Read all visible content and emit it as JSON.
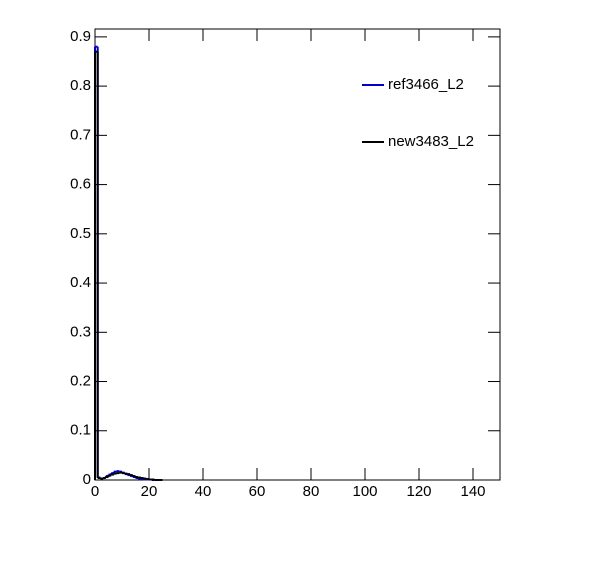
{
  "chart_data": {
    "type": "histogram",
    "bins": [
      0,
      1,
      2,
      3,
      4,
      5,
      6,
      7,
      8,
      9,
      10,
      11,
      12,
      13,
      14,
      15,
      16,
      17,
      18,
      19,
      20,
      21,
      22,
      23,
      24,
      25
    ],
    "series": [
      {
        "name": "ref3466_L2",
        "color": "#0000cc",
        "values": [
          0.88,
          0.005,
          0.003,
          0.004,
          0.008,
          0.011,
          0.014,
          0.017,
          0.018,
          0.017,
          0.015,
          0.012,
          0.01,
          0.008,
          0.006,
          0.004,
          0.003,
          0.002,
          0.001,
          0.001,
          0.001,
          0,
          0,
          0,
          0
        ]
      },
      {
        "name": "new3483_L2",
        "color": "#000000",
        "values": [
          0.87,
          0.004,
          0.003,
          0.004,
          0.006,
          0.009,
          0.011,
          0.013,
          0.014,
          0.015,
          0.014,
          0.013,
          0.012,
          0.01,
          0.008,
          0.006,
          0.005,
          0.004,
          0.003,
          0.002,
          0.001,
          0.001,
          0,
          0,
          0
        ]
      }
    ],
    "xlim": [
      0,
      150
    ],
    "xticks": [
      0,
      20,
      40,
      60,
      80,
      100,
      120,
      140
    ],
    "ylim": [
      0,
      0.916
    ],
    "yticks": [
      0,
      0.1,
      0.2,
      0.3,
      0.4,
      0.5,
      0.6,
      0.7,
      0.8,
      0.9
    ],
    "legend": "top-right"
  }
}
